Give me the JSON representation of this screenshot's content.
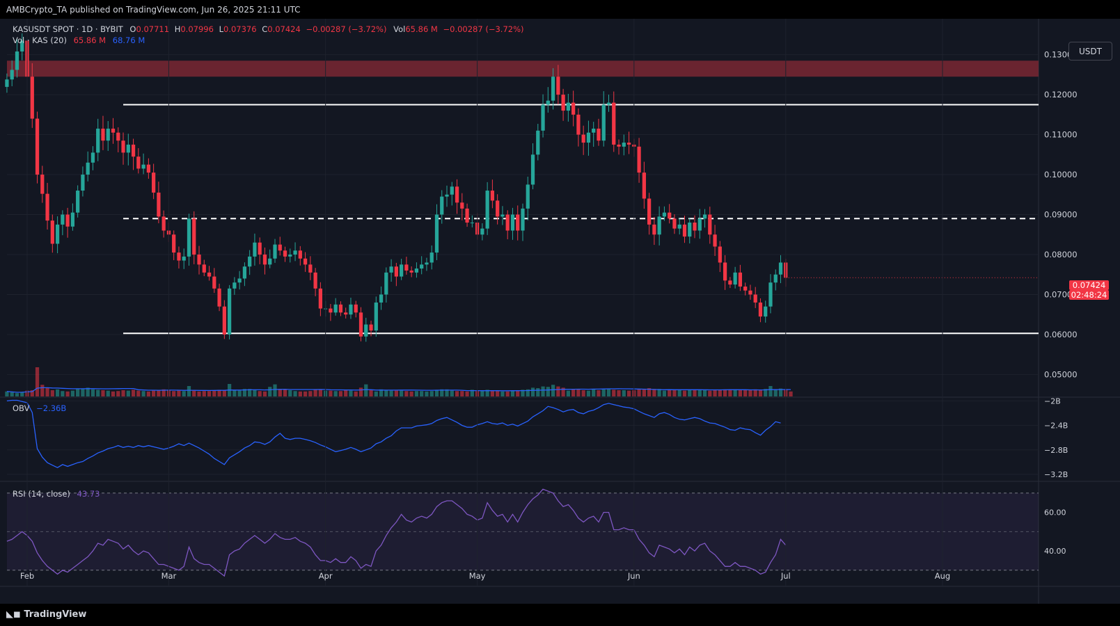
{
  "header": {
    "publisher": "AMBCrypto_TA published on TradingView.com, Jun 26, 2025 21:11 UTC"
  },
  "footer": {
    "logo_text": "TradingView"
  },
  "toolbar": {
    "currency_label": "USDT"
  },
  "legend": {
    "symbol": "KASUSDT SPOT · 1D · BYBIT",
    "o_label": "O",
    "o_value": "0.07711",
    "h_label": "H",
    "h_value": "0.07996",
    "l_label": "L",
    "l_value": "0.07376",
    "c_label": "C",
    "c_value": "0.07424",
    "change": "−0.00287 (−3.72%)",
    "vol_label": "Vol",
    "vol_value": "65.86 M",
    "vol_change": "−0.00287 (−3.72%)",
    "vol_ma_label": "Vol · KAS (20)",
    "vol_ma_value1": "65.86 M",
    "vol_ma_value2": "68.76 M",
    "obv_label": "OBV",
    "obv_value": "−2.36B",
    "rsi_label": "RSI (14, close)",
    "rsi_value": "43.73"
  },
  "price_tag": {
    "price": "0.07424",
    "countdown": "02:48:24"
  },
  "colors": {
    "bg": "#131722",
    "up": "#26a69a",
    "down": "#f23645",
    "zone": "#7a2733",
    "obv": "#2962ff",
    "rsi": "#7e57c2",
    "vol_ma": "#2962ff"
  },
  "chart_data": [
    {
      "type": "candlestick",
      "title": "KASUSDT SPOT · 1D · BYBIT",
      "x_tick_labels": [
        "Feb",
        "Mar",
        "Apr",
        "May",
        "Jun",
        "Jul",
        "Aug"
      ],
      "x_tick_dates": [
        "2025-02-01",
        "2025-03-01",
        "2025-04-01",
        "2025-05-01",
        "2025-06-01",
        "2025-07-01",
        "2025-08-01"
      ],
      "y_tick_labels": [
        "0.13000",
        "0.12000",
        "0.11000",
        "0.10000",
        "0.09000",
        "0.08000",
        "0.07000",
        "0.06000",
        "0.05000"
      ],
      "ylim": [
        0.0445,
        0.1355
      ],
      "start_date": "2025-01-28",
      "close": [
        0.1238,
        0.1262,
        0.1308,
        0.1335,
        0.1245,
        0.114,
        0.1,
        0.0952,
        0.0885,
        0.0827,
        0.0875,
        0.09,
        0.087,
        0.0905,
        0.096,
        0.1,
        0.103,
        0.1055,
        0.1115,
        0.1085,
        0.1115,
        0.1105,
        0.1085,
        0.1055,
        0.1075,
        0.1045,
        0.1015,
        0.1025,
        0.1005,
        0.0955,
        0.0895,
        0.086,
        0.085,
        0.0805,
        0.0785,
        0.0795,
        0.089,
        0.08,
        0.0775,
        0.0755,
        0.0745,
        0.0715,
        0.067,
        0.06,
        0.0715,
        0.073,
        0.074,
        0.077,
        0.0795,
        0.083,
        0.08,
        0.0775,
        0.079,
        0.0825,
        0.081,
        0.0795,
        0.08,
        0.081,
        0.079,
        0.0775,
        0.0755,
        0.0715,
        0.0665,
        0.0665,
        0.0655,
        0.0675,
        0.0655,
        0.065,
        0.0675,
        0.0655,
        0.0595,
        0.0625,
        0.061,
        0.068,
        0.07,
        0.0755,
        0.077,
        0.0745,
        0.0775,
        0.076,
        0.0755,
        0.0765,
        0.0775,
        0.078,
        0.0805,
        0.09,
        0.0945,
        0.095,
        0.097,
        0.093,
        0.0915,
        0.088,
        0.088,
        0.085,
        0.0865,
        0.096,
        0.0935,
        0.0895,
        0.09,
        0.086,
        0.09,
        0.086,
        0.0915,
        0.0975,
        0.105,
        0.111,
        0.1175,
        0.1185,
        0.1245,
        0.12,
        0.116,
        0.118,
        0.115,
        0.11,
        0.108,
        0.1105,
        0.1115,
        0.1085,
        0.1175,
        0.118,
        0.1075,
        0.107,
        0.108,
        0.1075,
        0.107,
        0.1005,
        0.094,
        0.0875,
        0.085,
        0.0895,
        0.0905,
        0.089,
        0.0865,
        0.0875,
        0.0845,
        0.088,
        0.086,
        0.089,
        0.09,
        0.085,
        0.082,
        0.078,
        0.0735,
        0.0725,
        0.0755,
        0.072,
        0.071,
        0.07,
        0.068,
        0.0645,
        0.067,
        0.073,
        0.075,
        0.078,
        0.0742
      ]
    },
    {
      "type": "bar",
      "title": "Vol · KAS (20)",
      "note": "volume bars with 20-period moving average; bar colors follow candle direction",
      "values_relative": [
        12,
        10,
        8,
        11,
        14,
        15,
        70,
        28,
        21,
        15,
        17,
        13,
        12,
        14,
        18,
        19,
        21,
        17,
        16,
        15,
        14,
        12,
        13,
        15,
        14,
        16,
        14,
        13,
        12,
        14,
        15,
        17,
        16,
        13,
        14,
        13,
        25,
        14,
        12,
        13,
        13,
        14,
        16,
        15,
        30,
        15,
        14,
        18,
        18,
        16,
        13,
        12,
        23,
        29,
        18,
        17,
        15,
        13,
        12,
        12,
        13,
        16,
        17,
        14,
        14,
        13,
        13,
        16,
        14,
        12,
        21,
        29,
        16,
        12,
        17,
        15,
        14,
        14,
        14,
        13,
        12,
        13,
        13,
        12,
        13,
        16,
        17,
        17,
        14,
        13,
        13,
        12,
        16,
        13,
        14,
        16,
        13,
        13,
        12,
        12,
        14,
        13,
        16,
        17,
        21,
        20,
        24,
        23,
        28,
        24,
        21,
        14,
        17,
        17,
        15,
        14,
        17,
        15,
        17,
        18,
        16,
        15,
        15,
        14,
        15,
        17,
        18,
        20,
        18,
        18,
        14,
        16,
        15,
        16,
        14,
        15,
        16,
        16,
        15,
        14,
        16,
        16,
        17,
        17,
        17,
        16,
        16,
        16,
        17,
        15,
        18,
        25,
        16,
        19,
        17,
        12
      ],
      "ma_value_latest": "68.76 M"
    },
    {
      "type": "line",
      "title": "OBV",
      "ylabel": "",
      "y_tick_labels": [
        "−2B",
        "−2.4B",
        "−2.8B",
        "−3.2B"
      ],
      "ylim": [
        -3.28,
        -1.95
      ],
      "values_billions": [
        -2.0,
        -1.99,
        -1.99,
        -2.01,
        -2.03,
        -2.19,
        -2.78,
        -2.92,
        -3.01,
        -3.05,
        -3.09,
        -3.04,
        -3.07,
        -3.04,
        -3.01,
        -2.99,
        -2.94,
        -2.9,
        -2.85,
        -2.82,
        -2.78,
        -2.76,
        -2.73,
        -2.76,
        -2.74,
        -2.76,
        -2.73,
        -2.75,
        -2.73,
        -2.75,
        -2.77,
        -2.79,
        -2.77,
        -2.74,
        -2.7,
        -2.73,
        -2.69,
        -2.73,
        -2.77,
        -2.82,
        -2.87,
        -2.94,
        -2.99,
        -3.04,
        -2.93,
        -2.88,
        -2.83,
        -2.77,
        -2.73,
        -2.67,
        -2.68,
        -2.71,
        -2.67,
        -2.59,
        -2.53,
        -2.61,
        -2.63,
        -2.61,
        -2.61,
        -2.63,
        -2.65,
        -2.68,
        -2.72,
        -2.75,
        -2.79,
        -2.83,
        -2.81,
        -2.79,
        -2.76,
        -2.79,
        -2.83,
        -2.8,
        -2.77,
        -2.7,
        -2.67,
        -2.61,
        -2.57,
        -2.49,
        -2.44,
        -2.44,
        -2.44,
        -2.41,
        -2.4,
        -2.39,
        -2.37,
        -2.32,
        -2.29,
        -2.27,
        -2.31,
        -2.35,
        -2.4,
        -2.43,
        -2.43,
        -2.39,
        -2.37,
        -2.34,
        -2.37,
        -2.38,
        -2.36,
        -2.4,
        -2.38,
        -2.41,
        -2.37,
        -2.33,
        -2.26,
        -2.21,
        -2.16,
        -2.09,
        -2.11,
        -2.14,
        -2.18,
        -2.15,
        -2.14,
        -2.19,
        -2.21,
        -2.17,
        -2.15,
        -2.11,
        -2.06,
        -2.04,
        -2.06,
        -2.08,
        -2.1,
        -2.11,
        -2.13,
        -2.17,
        -2.21,
        -2.24,
        -2.27,
        -2.21,
        -2.19,
        -2.22,
        -2.27,
        -2.3,
        -2.31,
        -2.29,
        -2.27,
        -2.29,
        -2.33,
        -2.36,
        -2.37,
        -2.4,
        -2.43,
        -2.47,
        -2.48,
        -2.44,
        -2.46,
        -2.47,
        -2.52,
        -2.56,
        -2.48,
        -2.42,
        -2.34,
        -2.36
      ]
    },
    {
      "type": "line",
      "title": "RSI (14, close)",
      "ylabel": "",
      "y_tick_labels": [
        "60.00",
        "40.00"
      ],
      "ylim": [
        22,
        75
      ],
      "band": [
        30,
        70
      ],
      "midline": 50,
      "values": [
        45,
        46,
        48,
        50,
        48,
        45,
        39,
        35,
        32,
        30,
        28,
        30,
        29,
        31,
        33,
        35,
        37,
        40,
        44,
        43,
        46,
        45,
        44,
        41,
        43,
        40,
        38,
        40,
        39,
        36,
        33,
        33,
        32,
        31,
        30,
        32,
        42,
        36,
        34,
        33,
        33,
        31,
        29,
        27,
        38,
        40,
        41,
        44,
        46,
        48,
        46,
        44,
        46,
        49,
        47,
        46,
        46,
        47,
        45,
        44,
        42,
        38,
        35,
        35,
        34,
        36,
        34,
        34,
        37,
        35,
        31,
        33,
        32,
        40,
        43,
        48,
        52,
        55,
        59,
        56,
        55,
        57,
        58,
        57,
        59,
        63,
        65,
        66,
        66,
        64,
        62,
        59,
        58,
        56,
        57,
        65,
        61,
        58,
        59,
        55,
        59,
        55,
        60,
        64,
        67,
        69,
        72,
        71,
        70,
        66,
        63,
        64,
        61,
        57,
        55,
        57,
        58,
        55,
        60,
        60,
        51,
        51,
        52,
        51,
        51,
        46,
        43,
        39,
        37,
        43,
        42,
        41,
        39,
        41,
        38,
        42,
        40,
        43,
        44,
        40,
        38,
        35,
        32,
        32,
        34,
        32,
        32,
        31,
        30,
        28,
        29,
        34,
        38,
        46,
        43
      ]
    }
  ],
  "annotations": {
    "resistance_zone": [
      0.1245,
      0.1285
    ],
    "range_high": 0.1175,
    "range_mid": 0.089,
    "range_low": 0.0603
  }
}
